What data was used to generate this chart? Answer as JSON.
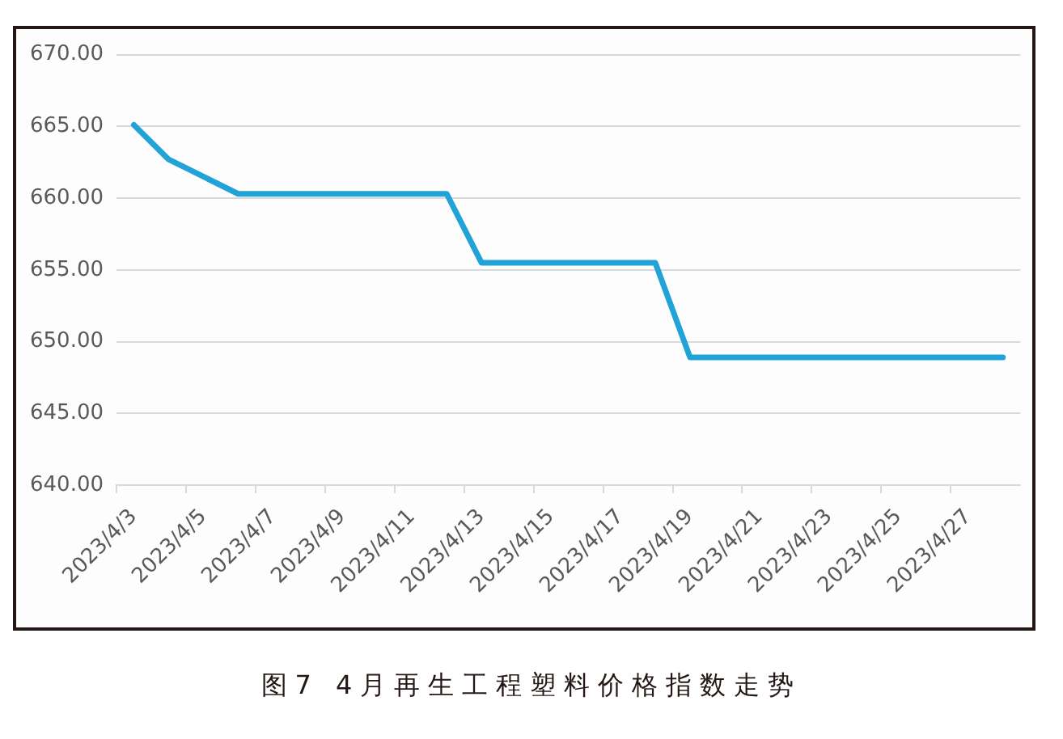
{
  "chart_data": {
    "type": "line",
    "title": "图7 4月再生工程塑料价格指数走势",
    "categories": [
      "2023/4/3",
      null,
      "2023/4/5",
      null,
      "2023/4/7",
      null,
      "2023/4/9",
      null,
      "2023/4/11",
      null,
      "2023/4/13",
      null,
      "2023/4/15",
      null,
      "2023/4/17",
      null,
      "2023/4/19",
      null,
      "2023/4/21",
      null,
      "2023/4/23",
      null,
      "2023/4/25",
      null,
      "2023/4/27",
      null
    ],
    "values": [
      665.1,
      662.7,
      661.5,
      660.3,
      660.3,
      660.3,
      660.3,
      660.3,
      660.3,
      660.3,
      655.5,
      655.5,
      655.5,
      655.5,
      655.5,
      655.5,
      648.9,
      648.9,
      648.9,
      648.9,
      648.9,
      648.9,
      648.9,
      648.9,
      648.9,
      648.9
    ],
    "color": "#22a3d7",
    "ylim": [
      640,
      670
    ],
    "yticks": [
      {
        "value": 640,
        "label": "640.00"
      },
      {
        "value": 645,
        "label": "645.00"
      },
      {
        "value": 650,
        "label": "650.00"
      },
      {
        "value": 655,
        "label": "655.00"
      },
      {
        "value": 660,
        "label": "660.00"
      },
      {
        "value": 665,
        "label": "665.00"
      },
      {
        "value": 670,
        "label": "670.00"
      }
    ],
    "grid": "y"
  }
}
